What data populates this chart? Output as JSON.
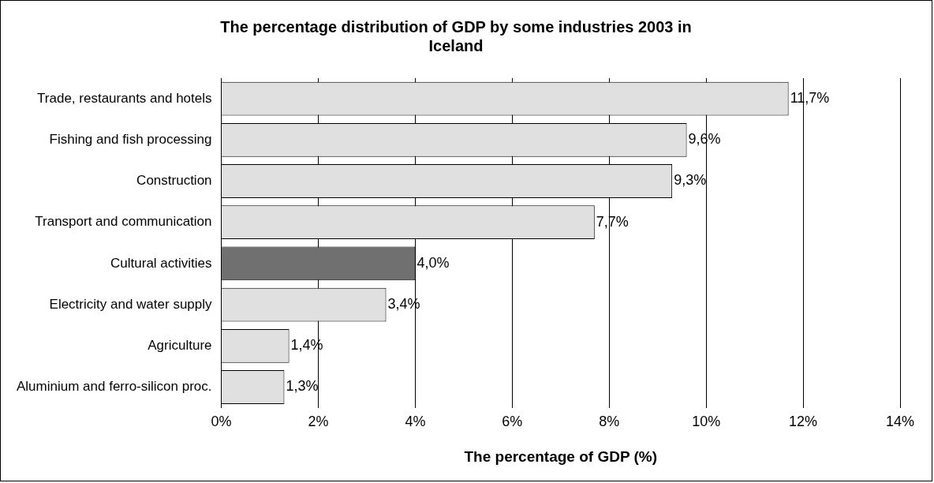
{
  "chart_data": {
    "type": "bar",
    "orientation": "horizontal",
    "title": "The percentage distribution of GDP by some industries 2003 in Iceland",
    "xlabel": "The percentage of GDP (%)",
    "categories": [
      "Trade, restaurants and hotels",
      "Fishing and fish processing",
      "Construction",
      "Transport and communication",
      "Cultural activities",
      "Electricity and water supply",
      "Agriculture",
      "Aluminium and ferro-silicon proc."
    ],
    "values": [
      11.7,
      9.6,
      9.3,
      7.7,
      4.0,
      3.4,
      1.4,
      1.3
    ],
    "colors": [
      "#e0e0e0",
      "#e0e0e0",
      "#e0e0e0",
      "#e0e0e0",
      "#707070",
      "#e0e0e0",
      "#e0e0e0",
      "#e0e0e0"
    ],
    "value_labels": [
      "11,7%",
      "9,6%",
      "9,3%",
      "7,7%",
      "4,0%",
      "3,4%",
      "1,4%",
      "1,3%"
    ],
    "xlim": [
      0,
      14
    ],
    "xticks": [
      {
        "value": 0,
        "label": "0%"
      },
      {
        "value": 2,
        "label": "2%"
      },
      {
        "value": 4,
        "label": "4%"
      },
      {
        "value": 6,
        "label": "6%"
      },
      {
        "value": 8,
        "label": "8%"
      },
      {
        "value": 10,
        "label": "10%"
      },
      {
        "value": 12,
        "label": "12%"
      },
      {
        "value": 14,
        "label": "14%"
      }
    ],
    "grid": "x",
    "legend": false
  }
}
